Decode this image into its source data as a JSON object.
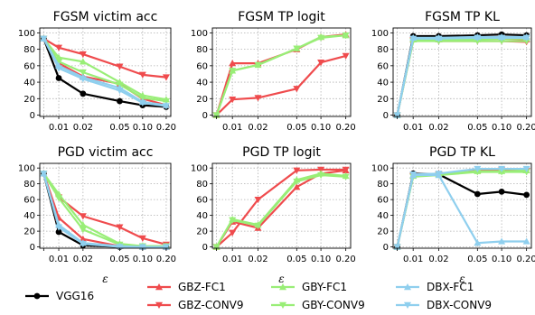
{
  "chart_data": [
    {
      "type": "line",
      "title": "FGSM victim acc",
      "x": [
        "0",
        "0.01",
        "0.02",
        "0.05",
        "0.10",
        "0.20"
      ],
      "xlabel": "",
      "ylim": [
        0,
        100
      ],
      "yticks": [
        "0",
        "20",
        "40",
        "60",
        "80",
        "100"
      ],
      "series": [
        {
          "name": "VGG16",
          "values": [
            93,
            45,
            26,
            17,
            12,
            10
          ]
        },
        {
          "name": "GBZ-FC1",
          "values": [
            93,
            63,
            47,
            38,
            20,
            12
          ]
        },
        {
          "name": "GBZ-CONV9",
          "values": [
            93,
            82,
            74,
            59,
            49,
            46
          ]
        },
        {
          "name": "GBY-FC1",
          "values": [
            93,
            70,
            65,
            40,
            24,
            19
          ]
        },
        {
          "name": "GBY-CONV9",
          "values": [
            93,
            65,
            52,
            37,
            21,
            17
          ]
        },
        {
          "name": "DBX-FC1",
          "values": [
            93,
            60,
            46,
            33,
            16,
            12
          ]
        },
        {
          "name": "DBX-CONV9",
          "values": [
            93,
            57,
            44,
            30,
            15,
            11
          ]
        }
      ]
    },
    {
      "type": "line",
      "title": "FGSM TP logit",
      "x": [
        "0",
        "0.01",
        "0.02",
        "0.05",
        "0.10",
        "0.20"
      ],
      "xlabel": "",
      "ylim": [
        0,
        100
      ],
      "yticks": [
        "0",
        "20",
        "40",
        "60",
        "80",
        "100"
      ],
      "series": [
        {
          "name": "GBZ-FC1",
          "values": [
            0,
            63,
            63,
            80,
            95,
            98
          ]
        },
        {
          "name": "GBZ-CONV9",
          "values": [
            0,
            19,
            21,
            32,
            64,
            72
          ]
        },
        {
          "name": "GBY-FC1",
          "values": [
            0,
            54,
            61,
            81,
            95,
            97
          ]
        },
        {
          "name": "GBY-CONV9",
          "values": [
            0,
            54,
            61,
            81,
            94,
            97
          ]
        }
      ]
    },
    {
      "type": "line",
      "title": "FGSM TP KL",
      "x": [
        "0",
        "0.01",
        "0.02",
        "0.05",
        "0.10",
        "0.20"
      ],
      "xlabel": "",
      "ylim": [
        0,
        100
      ],
      "yticks": [
        "0",
        "20",
        "40",
        "60",
        "80",
        "100"
      ],
      "series": [
        {
          "name": "VGG16",
          "values": [
            0,
            96,
            96,
            97,
            98,
            97
          ]
        },
        {
          "name": "GBZ-FC1",
          "values": [
            0,
            92,
            92,
            93,
            93,
            92
          ]
        },
        {
          "name": "GBZ-CONV9",
          "values": [
            0,
            91,
            90,
            90,
            90,
            89
          ]
        },
        {
          "name": "GBY-FC1",
          "values": [
            0,
            92,
            92,
            92,
            93,
            93
          ]
        },
        {
          "name": "GBY-CONV9",
          "values": [
            0,
            90,
            90,
            90,
            90,
            90
          ]
        },
        {
          "name": "DBX-FC1",
          "values": [
            0,
            94,
            94,
            95,
            95,
            95
          ]
        },
        {
          "name": "DBX-CONV9",
          "values": [
            0,
            93,
            93,
            94,
            94,
            94
          ]
        }
      ]
    },
    {
      "type": "line",
      "title": "PGD victim acc",
      "x": [
        "0",
        "0.01",
        "0.02",
        "0.05",
        "0.10",
        "0.20"
      ],
      "xlabel": "ε",
      "ylim": [
        0,
        100
      ],
      "yticks": [
        "0",
        "20",
        "40",
        "60",
        "80",
        "100"
      ],
      "series": [
        {
          "name": "VGG16",
          "values": [
            93,
            19,
            2,
            0,
            0,
            0
          ]
        },
        {
          "name": "GBZ-FC1",
          "values": [
            93,
            37,
            10,
            1,
            0,
            0
          ]
        },
        {
          "name": "GBZ-CONV9",
          "values": [
            93,
            63,
            39,
            25,
            11,
            3
          ]
        },
        {
          "name": "GBY-FC1",
          "values": [
            93,
            67,
            28,
            4,
            1,
            1
          ]
        },
        {
          "name": "GBY-CONV9",
          "values": [
            93,
            62,
            22,
            3,
            1,
            1
          ]
        },
        {
          "name": "DBX-FC1",
          "values": [
            93,
            28,
            5,
            1,
            0,
            0
          ]
        },
        {
          "name": "DBX-CONV9",
          "values": [
            93,
            25,
            4,
            0,
            0,
            0
          ]
        }
      ]
    },
    {
      "type": "line",
      "title": "PGD TP logit",
      "x": [
        "0",
        "0.01",
        "0.02",
        "0.05",
        "0.10",
        "0.20"
      ],
      "xlabel": "ε",
      "ylim": [
        0,
        100
      ],
      "yticks": [
        "0",
        "20",
        "40",
        "60",
        "80",
        "100"
      ],
      "series": [
        {
          "name": "GBZ-FC1",
          "values": [
            0,
            32,
            24,
            76,
            93,
            97
          ]
        },
        {
          "name": "GBZ-CONV9",
          "values": [
            0,
            18,
            60,
            97,
            98,
            98
          ]
        },
        {
          "name": "GBY-FC1",
          "values": [
            0,
            35,
            28,
            85,
            93,
            90
          ]
        },
        {
          "name": "GBY-CONV9",
          "values": [
            0,
            34,
            27,
            83,
            91,
            89
          ]
        }
      ]
    },
    {
      "type": "line",
      "title": "PGD TP KL",
      "x": [
        "0",
        "0.01",
        "0.02",
        "0.05",
        "0.10",
        "0.20"
      ],
      "xlabel": "ε",
      "ylim": [
        0,
        100
      ],
      "yticks": [
        "0",
        "20",
        "40",
        "60",
        "80",
        "100"
      ],
      "series": [
        {
          "name": "VGG16",
          "values": [
            0,
            93,
            92,
            67,
            70,
            66
          ]
        },
        {
          "name": "GBZ-FC1",
          "values": [
            0,
            91,
            93,
            97,
            98,
            97
          ]
        },
        {
          "name": "GBZ-CONV9",
          "values": [
            0,
            90,
            92,
            96,
            97,
            96
          ]
        },
        {
          "name": "GBY-FC1",
          "values": [
            0,
            90,
            92,
            96,
            96,
            97
          ]
        },
        {
          "name": "GBY-CONV9",
          "values": [
            0,
            89,
            91,
            95,
            95,
            95
          ]
        },
        {
          "name": "DBX-FC1",
          "values": [
            0,
            91,
            91,
            5,
            7,
            7
          ]
        },
        {
          "name": "DBX-CONV9",
          "values": [
            0,
            92,
            93,
            99,
            99,
            99
          ]
        }
      ]
    }
  ],
  "legend": [
    {
      "name": "VGG16",
      "color": "#000000",
      "marker": "circle"
    },
    {
      "name": "GBZ-FC1",
      "color": "#ef4b4d",
      "marker": "triangle-up"
    },
    {
      "name": "GBZ-CONV9",
      "color": "#ef4b4d",
      "marker": "triangle-down"
    },
    {
      "name": "GBY-FC1",
      "color": "#99ee77",
      "marker": "triangle-up"
    },
    {
      "name": "GBY-CONV9",
      "color": "#99ee77",
      "marker": "triangle-down"
    },
    {
      "name": "DBX-FC1",
      "color": "#8fcfee",
      "marker": "triangle-up"
    },
    {
      "name": "DBX-CONV9",
      "color": "#8fcfee",
      "marker": "triangle-down"
    }
  ],
  "legend_layout": "bottom, 4 columns",
  "grid": true
}
